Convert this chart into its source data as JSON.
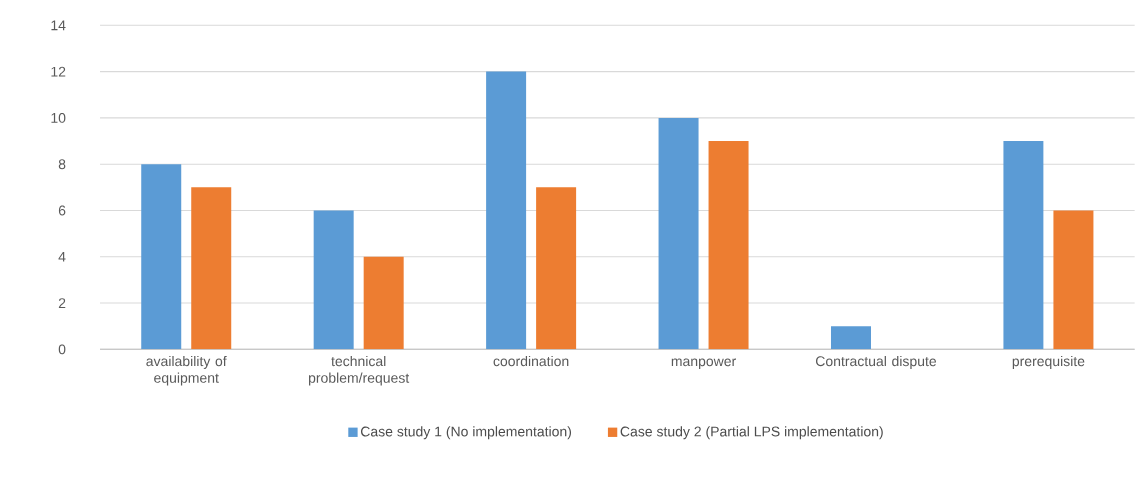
{
  "chart_data": {
    "type": "bar",
    "categories": [
      "availability of equipment",
      "technical problem/request",
      "coordination",
      "manpower",
      "Contractual dispute",
      "prerequisite"
    ],
    "series": [
      {
        "name": "Case study 1 (No implementation)",
        "color": "#5b9bd5",
        "values": [
          8,
          6,
          12,
          10,
          1,
          9
        ]
      },
      {
        "name": "Case study 2 (Partial LPS implementation)",
        "color": "#ed7d31",
        "values": [
          7,
          4,
          7,
          9,
          0,
          6
        ]
      }
    ],
    "ylim": [
      0,
      14
    ],
    "yticks": [
      0,
      2,
      4,
      6,
      8,
      10,
      12,
      14
    ],
    "grid": "y",
    "legend": "bottom"
  }
}
